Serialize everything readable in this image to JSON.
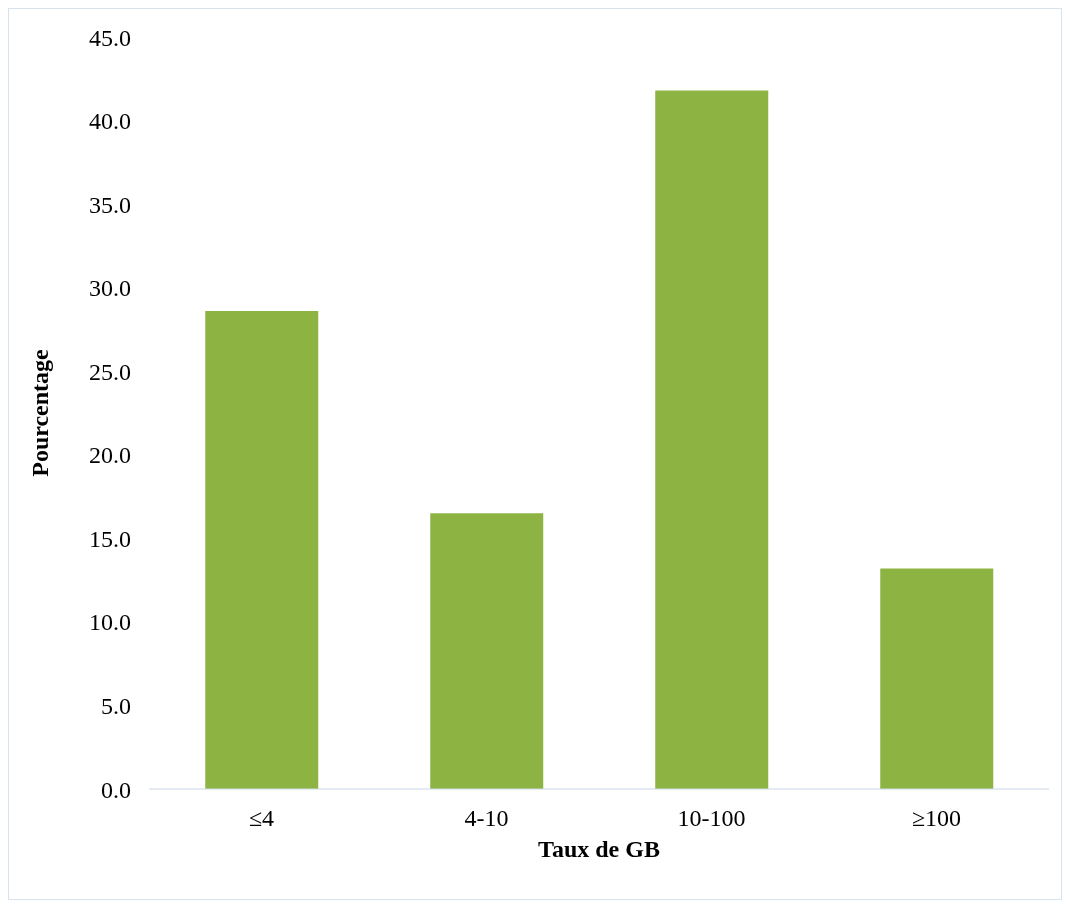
{
  "chart_data": {
    "type": "bar",
    "xlabel": "Taux de GB",
    "ylabel": "Pourcentage",
    "categories": [
      "≤4",
      "4-10",
      "10-100",
      "≥100"
    ],
    "values": [
      28.6,
      16.5,
      41.8,
      13.2
    ],
    "color": "#8db443",
    "ylim": [
      0,
      45
    ],
    "yticks": [
      {
        "value": 0,
        "label": "0.0"
      },
      {
        "value": 5,
        "label": "5.0"
      },
      {
        "value": 10,
        "label": "10.0"
      },
      {
        "value": 15,
        "label": "15.0"
      },
      {
        "value": 20,
        "label": "20.0"
      },
      {
        "value": 25,
        "label": "25.0"
      },
      {
        "value": 30,
        "label": "30.0"
      },
      {
        "value": 35,
        "label": "35.0"
      },
      {
        "value": 40,
        "label": "40.0"
      },
      {
        "value": 45,
        "label": "45.0"
      }
    ],
    "grid": false
  }
}
